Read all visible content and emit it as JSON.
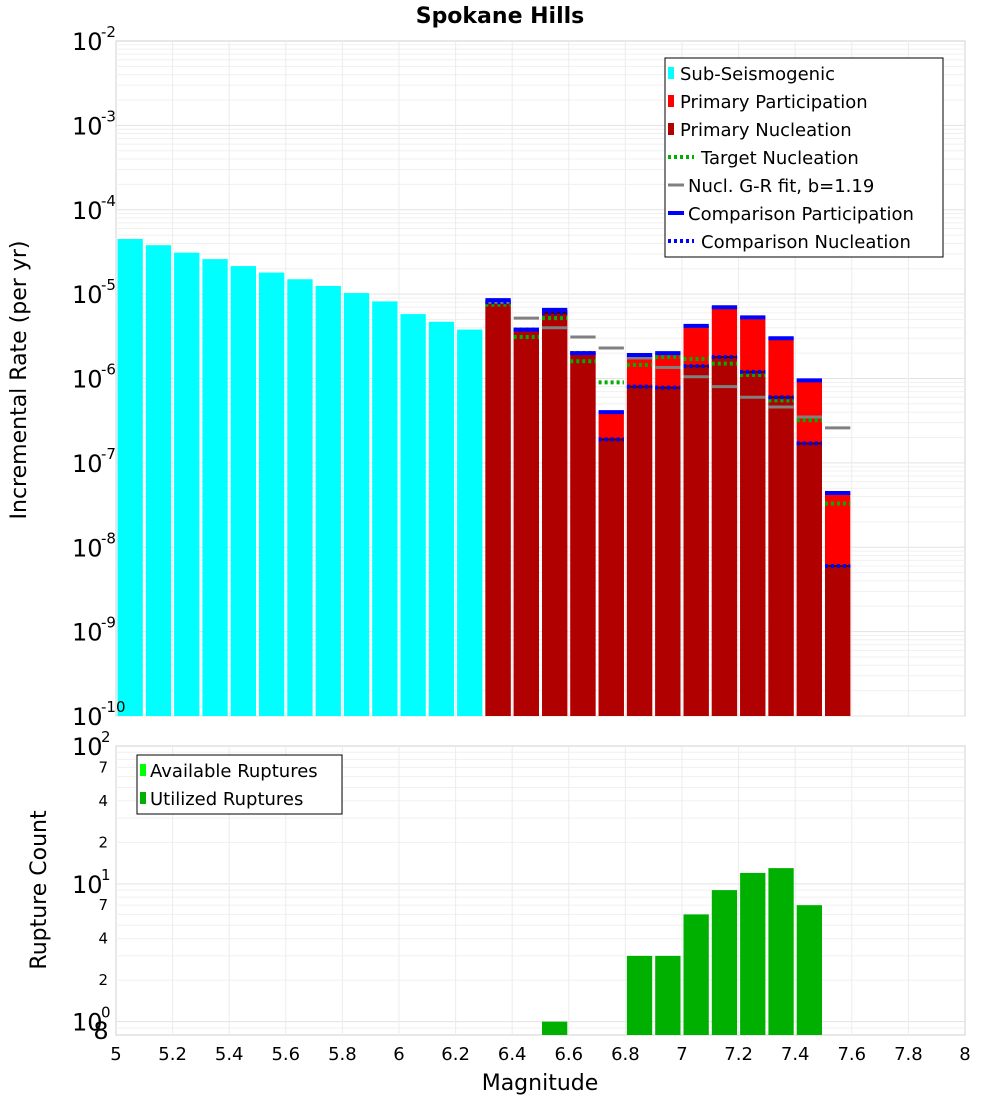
{
  "chart_data": [
    {
      "type": "bar",
      "title": "Spokane Hills",
      "xlabel": "",
      "ylabel": "Incremental Rate (per yr)",
      "yscale": "log",
      "xlim": [
        5,
        8
      ],
      "ylim": [
        1e-10,
        0.01
      ],
      "y_tick_labels": [
        {
          "base": "10",
          "exp": "-10"
        },
        {
          "base": "10",
          "exp": "-9"
        },
        {
          "base": "10",
          "exp": "-8"
        },
        {
          "base": "10",
          "exp": "-7"
        },
        {
          "base": "10",
          "exp": "-6"
        },
        {
          "base": "10",
          "exp": "-5"
        },
        {
          "base": "10",
          "exp": "-4"
        },
        {
          "base": "10",
          "exp": "-3"
        },
        {
          "base": "10",
          "exp": "-2"
        }
      ],
      "legend_position": "top-right",
      "legend": [
        "Sub-Seismogenic",
        "Primary Participation",
        "Primary Nucleation",
        "Target Nucleation",
        "Nucl. G-R fit, b=1.19",
        "Comparison Participation",
        "Comparison Nucleation"
      ],
      "colors": {
        "sub_seismogenic": "#00ffff",
        "primary_participation": "#ff0000",
        "primary_nucleation": "#b00000",
        "target_nucleation": "#00b000",
        "gr_fit": "#808080",
        "comparison_participation": "#0000ff",
        "comparison_nucleation": "#0000ff"
      },
      "bin_width": 0.1,
      "series": [
        {
          "name": "Sub-Seismogenic",
          "x": [
            5.05,
            5.15,
            5.25,
            5.35,
            5.45,
            5.55,
            5.65,
            5.75,
            5.85,
            5.95,
            6.05,
            6.15,
            6.25
          ],
          "values": [
            4.5e-05,
            3.8e-05,
            3.1e-05,
            2.6e-05,
            2.15e-05,
            1.8e-05,
            1.5e-05,
            1.25e-05,
            1.03e-05,
            8.2e-06,
            5.8e-06,
            4.7e-06,
            3.8e-06
          ]
        },
        {
          "name": "Primary Participation",
          "x": [
            6.35,
            6.45,
            6.55,
            6.65,
            6.75,
            6.85,
            6.95,
            7.05,
            7.15,
            7.25,
            7.35,
            7.45,
            7.55
          ],
          "values": [
            8.5e-06,
            3.8e-06,
            6.5e-06,
            2e-06,
            4e-07,
            1.9e-06,
            2e-06,
            4.2e-06,
            7e-06,
            5.3e-06,
            3e-06,
            9.5e-07,
            4.4e-08
          ]
        },
        {
          "name": "Primary Nucleation",
          "x": [
            6.35,
            6.45,
            6.55,
            6.65,
            6.75,
            6.85,
            6.95,
            7.05,
            7.15,
            7.25,
            7.35,
            7.45,
            7.55
          ],
          "values": [
            8e-06,
            3.8e-06,
            6e-06,
            2e-06,
            1.9e-07,
            8e-07,
            7.8e-07,
            1.4e-06,
            1.8e-06,
            1.2e-06,
            6e-07,
            1.7e-07,
            6e-09
          ]
        },
        {
          "name": "Target Nucleation",
          "x": [
            6.35,
            6.45,
            6.55,
            6.65,
            6.75,
            6.85,
            6.95,
            7.05,
            7.15,
            7.25,
            7.35,
            7.45,
            7.55
          ],
          "values": [
            7.5e-06,
            3.1e-06,
            5.2e-06,
            1.6e-06,
            9e-07,
            1.45e-06,
            1.8e-06,
            1.7e-06,
            1.5e-06,
            1.1e-06,
            5.5e-07,
            3.2e-07,
            3.3e-08
          ]
        },
        {
          "name": "Nucl. G-R fit, b=1.19",
          "x": [
            6.35,
            6.45,
            6.55,
            6.65,
            6.75,
            6.85,
            6.95,
            7.05,
            7.15,
            7.25,
            7.35,
            7.45,
            7.55
          ],
          "values": [
            8e-06,
            5.2e-06,
            4e-06,
            3.1e-06,
            2.3e-06,
            1.75e-06,
            1.35e-06,
            1.05e-06,
            8e-07,
            6e-07,
            4.6e-07,
            3.5e-07,
            2.6e-07
          ]
        },
        {
          "name": "Comparison Participation",
          "x": [
            6.35,
            6.45,
            6.55,
            6.65,
            6.75,
            6.85,
            6.95,
            7.05,
            7.15,
            7.25,
            7.35,
            7.45,
            7.55
          ],
          "values": [
            8.5e-06,
            3.8e-06,
            6.5e-06,
            2e-06,
            4e-07,
            1.9e-06,
            2e-06,
            4.2e-06,
            7e-06,
            5.3e-06,
            3e-06,
            9.5e-07,
            4.4e-08
          ]
        },
        {
          "name": "Comparison Nucleation",
          "x": [
            6.35,
            6.45,
            6.55,
            6.65,
            6.75,
            6.85,
            6.95,
            7.05,
            7.15,
            7.25,
            7.35,
            7.45,
            7.55
          ],
          "values": [
            8e-06,
            3.8e-06,
            6e-06,
            2e-06,
            1.9e-07,
            8e-07,
            7.8e-07,
            1.4e-06,
            1.8e-06,
            1.2e-06,
            6e-07,
            1.7e-07,
            6e-09
          ]
        }
      ]
    },
    {
      "type": "bar",
      "title": "",
      "xlabel": "Magnitude",
      "ylabel": "Rupture Count",
      "yscale": "log",
      "xlim": [
        5,
        8
      ],
      "ylim": [
        0.8,
        100
      ],
      "x_ticks": [
        "5",
        "5.2",
        "5.4",
        "5.6",
        "5.8",
        "6",
        "6.2",
        "6.4",
        "6.6",
        "6.8",
        "7",
        "7.2",
        "7.4",
        "7.6",
        "7.8",
        "8"
      ],
      "y_tick_labels": [
        {
          "base": "10",
          "exp": "0"
        },
        {
          "base": "10",
          "exp": "1"
        },
        {
          "base": "10",
          "exp": "2"
        }
      ],
      "y_minor_tick_labels": [
        "8",
        "2",
        "4",
        "7",
        "2",
        "4",
        "7"
      ],
      "legend_position": "top-left",
      "legend": [
        "Available Ruptures",
        "Utilized Ruptures"
      ],
      "colors": {
        "available": "#00ff00",
        "utilized": "#00b000"
      },
      "bin_width": 0.1,
      "series": [
        {
          "name": "Utilized Ruptures",
          "x": [
            6.55,
            6.85,
            6.95,
            7.05,
            7.15,
            7.25,
            7.35,
            7.45
          ],
          "values": [
            1,
            3,
            3,
            6,
            9,
            12,
            13,
            7
          ]
        }
      ]
    }
  ]
}
